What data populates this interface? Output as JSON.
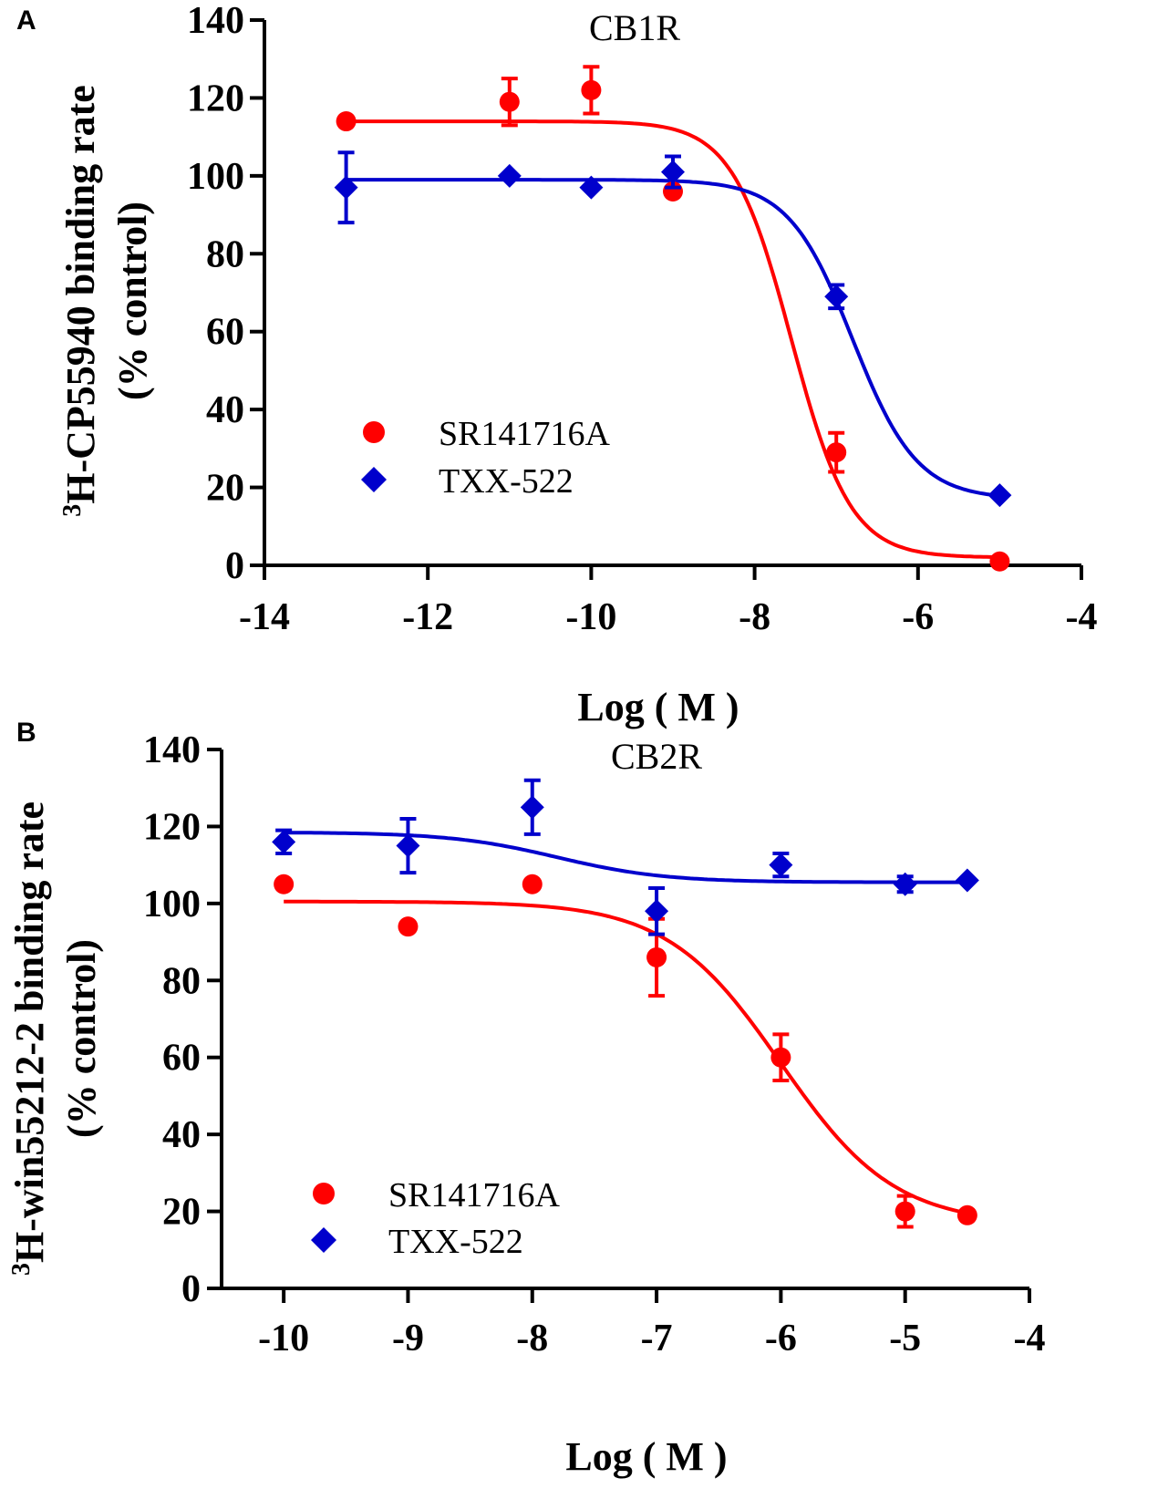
{
  "chart_data": [
    {
      "panel": "A",
      "type": "scatter",
      "title": "CB1R",
      "xlabel": "Log ( M )",
      "ylabel_line1_prefix": "3",
      "ylabel_line1": "H-CP55940 binding rate",
      "ylabel_line2": "(% control)",
      "xlim": [
        -14,
        -4
      ],
      "ylim": [
        0,
        140
      ],
      "xticks": [
        -14,
        -12,
        -10,
        -8,
        -6,
        -4
      ],
      "xtick_labels": [
        "-14",
        "-12",
        "-10",
        "-8",
        "-6",
        "-4"
      ],
      "yticks": [
        0,
        20,
        40,
        60,
        80,
        100,
        120,
        140
      ],
      "ytick_labels": [
        "0",
        "20",
        "40",
        "60",
        "80",
        "100",
        "120",
        "140"
      ],
      "legend_position": "middle-left",
      "series": [
        {
          "name": "SR141716A",
          "marker": "circle",
          "color": "#ff0000",
          "x": [
            -13,
            -11,
            -10,
            -9,
            -7,
            -5
          ],
          "y": [
            114,
            119,
            122,
            96,
            29,
            1
          ],
          "err": [
            0,
            6,
            6,
            1,
            5,
            0
          ],
          "fit": {
            "top": 114,
            "bottom": 2,
            "logIC50": -7.55,
            "hill": 1.2,
            "xmin": -13,
            "xmax": -5
          }
        },
        {
          "name": "TXX-522",
          "marker": "diamond",
          "color": "#0000cc",
          "x": [
            -13,
            -11,
            -10,
            -9,
            -7,
            -5
          ],
          "y": [
            97,
            100,
            97,
            101,
            69,
            18
          ],
          "err": [
            9,
            0,
            0,
            4,
            3,
            0
          ],
          "fit": {
            "top": 99,
            "bottom": 17,
            "logIC50": -6.8,
            "hill": 1.1,
            "xmin": -13,
            "xmax": -5
          }
        }
      ]
    },
    {
      "panel": "B",
      "type": "scatter",
      "title": "CB2R",
      "xlabel": "Log ( M )",
      "ylabel_line1_prefix": "3",
      "ylabel_line1": "H-win55212-2 binding rate",
      "ylabel_line2": "(% control)",
      "xlim": [
        -10.5,
        -4
      ],
      "ylim": [
        0,
        140
      ],
      "xticks": [
        -10,
        -9,
        -8,
        -7,
        -6,
        -5,
        -4
      ],
      "xtick_labels": [
        "-10",
        "-9",
        "-8",
        "-7",
        "-6",
        "-5",
        "-4"
      ],
      "yticks": [
        0,
        20,
        40,
        60,
        80,
        100,
        120,
        140
      ],
      "ytick_labels": [
        "0",
        "20",
        "40",
        "60",
        "80",
        "100",
        "120",
        "140"
      ],
      "legend_position": "bottom-left",
      "series": [
        {
          "name": "SR141716A",
          "marker": "circle",
          "color": "#ff0000",
          "x": [
            -10,
            -9,
            -8,
            -7,
            -6,
            -5,
            -4.5
          ],
          "y": [
            105,
            94,
            105,
            86,
            60,
            20,
            19
          ],
          "err": [
            0,
            1,
            0,
            10,
            6,
            4,
            0
          ],
          "fit": {
            "top": 100.5,
            "bottom": 16.5,
            "logIC50": -6.0,
            "hill": 0.95,
            "xmin": -10,
            "xmax": -4.5
          }
        },
        {
          "name": "TXX-522",
          "marker": "diamond",
          "color": "#0000cc",
          "x": [
            -10,
            -9,
            -8,
            -7,
            -6,
            -5,
            -4.5
          ],
          "y": [
            116,
            115,
            125,
            98,
            110,
            105,
            106
          ],
          "err": [
            3,
            7,
            7,
            6,
            3,
            2,
            0
          ],
          "fit": {
            "top": 118.5,
            "bottom": 105.5,
            "logIC50": -7.8,
            "hill": 1.0,
            "xmin": -10,
            "xmax": -4.5
          }
        }
      ]
    }
  ]
}
